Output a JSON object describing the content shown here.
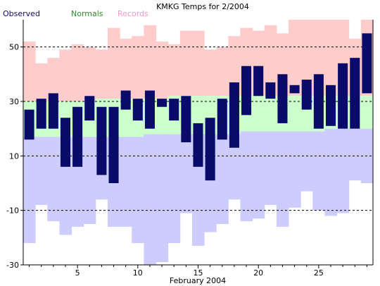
{
  "chart_data": {
    "type": "bar",
    "title": "KMKG Temps for 2/2004",
    "xlabel": "February 2004",
    "ylabel": "",
    "ylim": [
      -30,
      60
    ],
    "xlim": [
      0.5,
      29.5
    ],
    "x_ticks": [
      5,
      10,
      15,
      20,
      25
    ],
    "y_ticks": [
      -30,
      -10,
      10,
      30,
      50
    ],
    "grid": "dashed horizontal lines at -10, 10, 30, 50",
    "legend": {
      "placement": "top-left"
    },
    "days": [
      1,
      2,
      3,
      4,
      5,
      6,
      7,
      8,
      9,
      10,
      11,
      12,
      13,
      14,
      15,
      16,
      17,
      18,
      19,
      20,
      21,
      22,
      23,
      24,
      25,
      26,
      27,
      28,
      29
    ],
    "series": [
      {
        "name": "Observed",
        "color": "#0a0a6b",
        "high": [
          27,
          31,
          33,
          24,
          28,
          32,
          28,
          28,
          34,
          31,
          34,
          31,
          31,
          32,
          22,
          24,
          31,
          37,
          43,
          43,
          37,
          40,
          36,
          38,
          40,
          36,
          44,
          46,
          55
        ],
        "low": [
          16,
          20,
          20,
          6,
          6,
          23,
          3,
          0,
          27,
          23,
          20,
          28,
          23,
          15,
          6,
          1,
          16,
          13,
          25,
          32,
          31,
          22,
          33,
          27,
          20,
          21,
          20,
          20,
          33
        ]
      },
      {
        "name": "Normals",
        "color": "#ccffcc",
        "high": [
          30,
          30,
          30,
          30,
          30,
          30,
          31,
          31,
          31,
          31,
          31,
          31,
          32,
          32,
          32,
          32,
          32,
          32,
          32,
          32,
          32,
          32,
          32,
          32,
          32,
          32,
          32,
          32,
          32
        ],
        "low": [
          17,
          17,
          17,
          17,
          17,
          17,
          17,
          17,
          17,
          17,
          18,
          18,
          18,
          18,
          18,
          18,
          18,
          18,
          19,
          19,
          19,
          19,
          19,
          19,
          19,
          20,
          20,
          20,
          20
        ]
      },
      {
        "name": "Records",
        "high_color": "#ffcccc",
        "low_color": "#ccccff",
        "high": [
          52,
          44,
          46,
          49,
          51,
          50,
          49,
          57,
          53,
          54,
          58,
          52,
          51,
          56,
          56,
          49,
          50,
          54,
          57,
          56,
          58,
          55,
          60,
          62,
          60,
          66,
          62,
          53,
          63
        ],
        "low": [
          -22,
          -8,
          -14,
          -19,
          -16,
          -15,
          -6,
          -16,
          -16,
          -22,
          -30,
          -29,
          -22,
          -11,
          -23,
          -18,
          -15,
          -6,
          -14,
          -13,
          -8,
          -16,
          -9,
          -3,
          -10,
          -12,
          -11,
          1,
          0
        ]
      }
    ]
  }
}
